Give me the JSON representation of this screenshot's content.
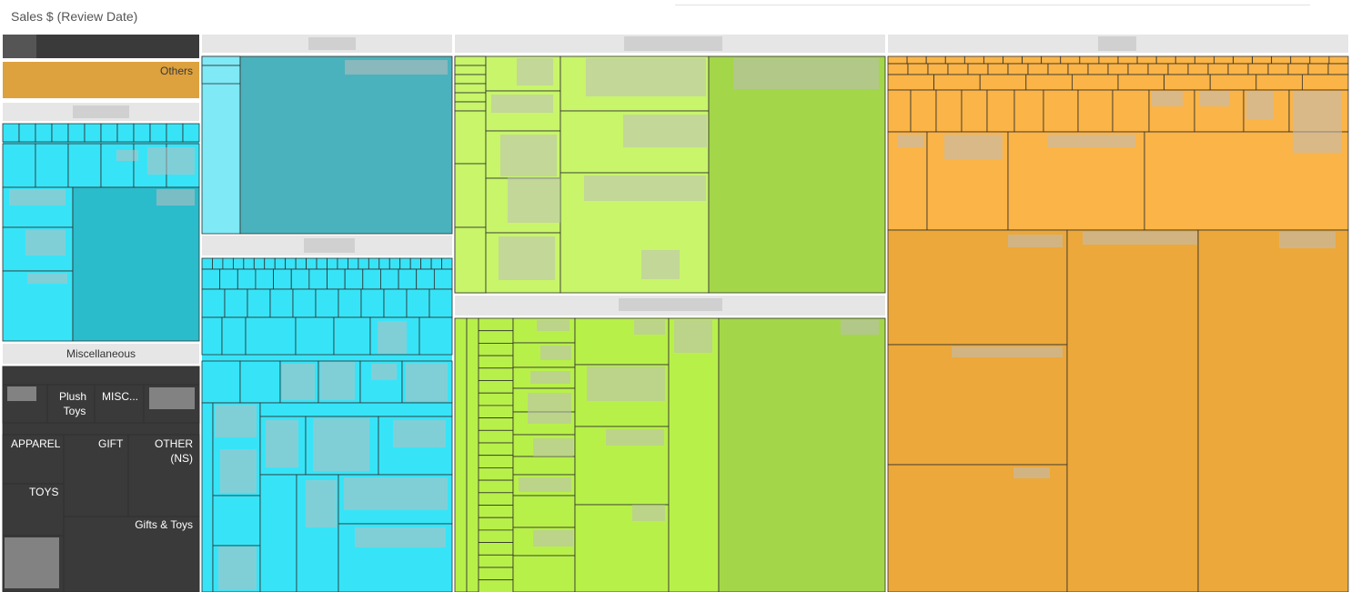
{
  "page": {
    "title": "Sales $ (Review Date)"
  },
  "colors": {
    "header": "#e6e6e6",
    "dark": "#3a3a3a",
    "others": "#dda13e",
    "cyan_light": "#7fe9f5",
    "cyan": "#37e4f7",
    "teal": "#4ab2bd",
    "teal_mid": "#2bbccc",
    "lime": "#c8f56a",
    "lime_mid": "#b8f04a",
    "green": "#a4d64a",
    "orange": "#fbb447",
    "orange_dark": "#eca83a"
  },
  "chart_data": {
    "type": "treemap",
    "title": "Sales $ (Review Date)",
    "visible_labels": [
      "Others",
      "Miscellaneous",
      "Plush Toys",
      "MISC...",
      "APPAREL",
      "GIFT",
      "OTHER (NS)",
      "TOYS",
      "Gifts & Toys"
    ],
    "groups": [
      {
        "id": "g1",
        "label": "",
        "color": "dark"
      },
      {
        "id": "g2",
        "label": "Others",
        "color": "others"
      },
      {
        "id": "g3",
        "label": "",
        "color": "cyan"
      },
      {
        "id": "g4",
        "label": "Miscellaneous",
        "color": "dark",
        "children": [
          "Plush Toys",
          "MISC...",
          "APPAREL",
          "GIFT",
          "OTHER (NS)",
          "TOYS",
          "Gifts & Toys"
        ]
      },
      {
        "id": "g5",
        "label": "",
        "color": "teal"
      },
      {
        "id": "g6",
        "label": "",
        "color": "cyan"
      },
      {
        "id": "g7",
        "label": "",
        "color": "lime"
      },
      {
        "id": "g8",
        "label": "",
        "color": "lime_mid"
      },
      {
        "id": "g9",
        "label": "",
        "color": "orange"
      }
    ]
  }
}
